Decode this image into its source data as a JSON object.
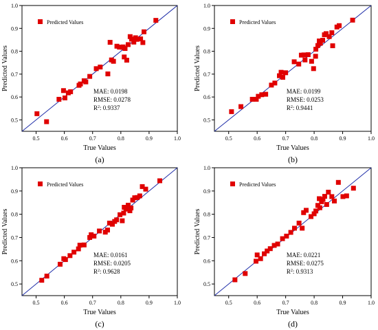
{
  "colors": {
    "marker": "#e00000",
    "line": "#1f2ea8",
    "frame": "#000000"
  },
  "chart_data": [
    {
      "type": "scatter",
      "caption": "(a)",
      "xlabel": "True Values",
      "ylabel": "Predicted Values",
      "xlim": [
        0.45,
        1.0
      ],
      "ylim": [
        0.45,
        1.0
      ],
      "xticks": [
        "0.5",
        "0.6",
        "0.7",
        "0.8",
        "0.9",
        "1.0"
      ],
      "yticks": [
        "0.5",
        "0.6",
        "0.7",
        "0.8",
        "0.9",
        "1.0"
      ],
      "legend": "Predicted Values",
      "legend_position": "top-left",
      "reference_line": "y = x",
      "metrics": [
        "MAE: 0.0198",
        "RMSE: 0.0278",
        "R2: 0.9337"
      ],
      "points": [
        [
          0.503,
          0.527
        ],
        [
          0.537,
          0.492
        ],
        [
          0.581,
          0.59
        ],
        [
          0.597,
          0.628
        ],
        [
          0.602,
          0.596
        ],
        [
          0.614,
          0.618
        ],
        [
          0.622,
          0.623
        ],
        [
          0.652,
          0.651
        ],
        [
          0.657,
          0.657
        ],
        [
          0.67,
          0.671
        ],
        [
          0.676,
          0.666
        ],
        [
          0.69,
          0.69
        ],
        [
          0.713,
          0.724
        ],
        [
          0.727,
          0.731
        ],
        [
          0.754,
          0.701
        ],
        [
          0.762,
          0.839
        ],
        [
          0.767,
          0.762
        ],
        [
          0.774,
          0.756
        ],
        [
          0.786,
          0.822
        ],
        [
          0.795,
          0.818
        ],
        [
          0.807,
          0.817
        ],
        [
          0.808,
          0.819
        ],
        [
          0.812,
          0.775
        ],
        [
          0.815,
          0.812
        ],
        [
          0.821,
          0.761
        ],
        [
          0.826,
          0.829
        ],
        [
          0.833,
          0.864
        ],
        [
          0.838,
          0.853
        ],
        [
          0.846,
          0.84
        ],
        [
          0.852,
          0.859
        ],
        [
          0.857,
          0.852
        ],
        [
          0.87,
          0.854
        ],
        [
          0.878,
          0.838
        ],
        [
          0.882,
          0.885
        ],
        [
          0.924,
          0.935
        ]
      ]
    },
    {
      "type": "scatter",
      "caption": "(b)",
      "xlabel": "True Values",
      "ylabel": "Predicted Values",
      "xlim": [
        0.45,
        1.0
      ],
      "ylim": [
        0.45,
        1.0
      ],
      "xticks": [
        "0.5",
        "0.6",
        "0.7",
        "0.8",
        "0.9",
        "1.0"
      ],
      "yticks": [
        "0.5",
        "0.6",
        "0.7",
        "0.8",
        "0.9",
        "1.0"
      ],
      "legend": "Predicted Values",
      "legend_position": "top-left",
      "reference_line": "y = x",
      "metrics": [
        "MAE: 0.0199",
        "RMSE: 0.0253",
        "R2: 0.9441"
      ],
      "points": [
        [
          0.51,
          0.536
        ],
        [
          0.543,
          0.558
        ],
        [
          0.583,
          0.59
        ],
        [
          0.597,
          0.59
        ],
        [
          0.604,
          0.603
        ],
        [
          0.616,
          0.61
        ],
        [
          0.63,
          0.612
        ],
        [
          0.65,
          0.652
        ],
        [
          0.662,
          0.661
        ],
        [
          0.678,
          0.693
        ],
        [
          0.69,
          0.686
        ],
        [
          0.7,
          0.706
        ],
        [
          0.73,
          0.754
        ],
        [
          0.746,
          0.744
        ],
        [
          0.764,
          0.784
        ],
        [
          0.768,
          0.762
        ],
        [
          0.779,
          0.785
        ],
        [
          0.791,
          0.756
        ],
        [
          0.798,
          0.724
        ],
        [
          0.806,
          0.809
        ],
        [
          0.813,
          0.825
        ],
        [
          0.818,
          0.845
        ],
        [
          0.822,
          0.835
        ],
        [
          0.83,
          0.848
        ],
        [
          0.836,
          0.872
        ],
        [
          0.842,
          0.877
        ],
        [
          0.853,
          0.864
        ],
        [
          0.862,
          0.881
        ],
        [
          0.88,
          0.906
        ],
        [
          0.888,
          0.912
        ],
        [
          0.935,
          0.936
        ],
        [
          0.805,
          0.778
        ],
        [
          0.684,
          0.708
        ],
        [
          0.755,
          0.783
        ],
        [
          0.865,
          0.824
        ]
      ]
    },
    {
      "type": "scatter",
      "caption": "(c)",
      "xlabel": "True Values",
      "ylabel": "Predicted Values",
      "xlim": [
        0.45,
        1.0
      ],
      "ylim": [
        0.45,
        1.0
      ],
      "xticks": [
        "0.5",
        "0.6",
        "0.7",
        "0.8",
        "0.9",
        "1.0"
      ],
      "yticks": [
        "0.5",
        "0.6",
        "0.7",
        "0.8",
        "0.9",
        "1.0"
      ],
      "legend": "Predicted Values",
      "legend_position": "top-left",
      "reference_line": "y = x",
      "metrics": [
        "MAE: 0.0161",
        "RMSE: 0.0205",
        "R2: 0.9628"
      ],
      "points": [
        [
          0.52,
          0.516
        ],
        [
          0.538,
          0.534
        ],
        [
          0.585,
          0.585
        ],
        [
          0.598,
          0.609
        ],
        [
          0.604,
          0.605
        ],
        [
          0.62,
          0.622
        ],
        [
          0.634,
          0.637
        ],
        [
          0.65,
          0.651
        ],
        [
          0.655,
          0.667
        ],
        [
          0.67,
          0.668
        ],
        [
          0.69,
          0.7
        ],
        [
          0.695,
          0.712
        ],
        [
          0.705,
          0.706
        ],
        [
          0.724,
          0.728
        ],
        [
          0.745,
          0.723
        ],
        [
          0.753,
          0.732
        ],
        [
          0.76,
          0.762
        ],
        [
          0.77,
          0.757
        ],
        [
          0.778,
          0.769
        ],
        [
          0.785,
          0.776
        ],
        [
          0.797,
          0.798
        ],
        [
          0.805,
          0.772
        ],
        [
          0.812,
          0.83
        ],
        [
          0.818,
          0.822
        ],
        [
          0.826,
          0.839
        ],
        [
          0.832,
          0.815
        ],
        [
          0.836,
          0.827
        ],
        [
          0.842,
          0.861
        ],
        [
          0.849,
          0.871
        ],
        [
          0.858,
          0.872
        ],
        [
          0.867,
          0.879
        ],
        [
          0.876,
          0.919
        ],
        [
          0.888,
          0.908
        ],
        [
          0.938,
          0.944
        ],
        [
          0.81,
          0.805
        ]
      ]
    },
    {
      "type": "scatter",
      "caption": "(d)",
      "xlabel": "True Values",
      "ylabel": "Predicted Values",
      "xlim": [
        0.45,
        1.0
      ],
      "ylim": [
        0.45,
        1.0
      ],
      "xticks": [
        "0.5",
        "0.6",
        "0.7",
        "0.8",
        "0.9",
        "1.0"
      ],
      "yticks": [
        "0.5",
        "0.6",
        "0.7",
        "0.8",
        "0.9",
        "1.0"
      ],
      "legend": "Predicted Values",
      "legend_position": "top-left",
      "reference_line": "y = x",
      "metrics": [
        "MAE: 0.0221",
        "RMSE: 0.0275",
        "R2: 0.9313"
      ],
      "points": [
        [
          0.522,
          0.518
        ],
        [
          0.558,
          0.545
        ],
        [
          0.596,
          0.598
        ],
        [
          0.6,
          0.625
        ],
        [
          0.612,
          0.609
        ],
        [
          0.625,
          0.63
        ],
        [
          0.635,
          0.642
        ],
        [
          0.646,
          0.652
        ],
        [
          0.66,
          0.666
        ],
        [
          0.672,
          0.672
        ],
        [
          0.689,
          0.695
        ],
        [
          0.703,
          0.706
        ],
        [
          0.718,
          0.722
        ],
        [
          0.731,
          0.74
        ],
        [
          0.747,
          0.762
        ],
        [
          0.758,
          0.74
        ],
        [
          0.763,
          0.807
        ],
        [
          0.772,
          0.817
        ],
        [
          0.789,
          0.79
        ],
        [
          0.8,
          0.802
        ],
        [
          0.806,
          0.814
        ],
        [
          0.813,
          0.838
        ],
        [
          0.818,
          0.867
        ],
        [
          0.826,
          0.854
        ],
        [
          0.831,
          0.864
        ],
        [
          0.837,
          0.877
        ],
        [
          0.844,
          0.842
        ],
        [
          0.85,
          0.895
        ],
        [
          0.862,
          0.876
        ],
        [
          0.871,
          0.857
        ],
        [
          0.885,
          0.937
        ],
        [
          0.901,
          0.876
        ],
        [
          0.914,
          0.879
        ],
        [
          0.938,
          0.912
        ],
        [
          0.82,
          0.828
        ]
      ]
    }
  ]
}
